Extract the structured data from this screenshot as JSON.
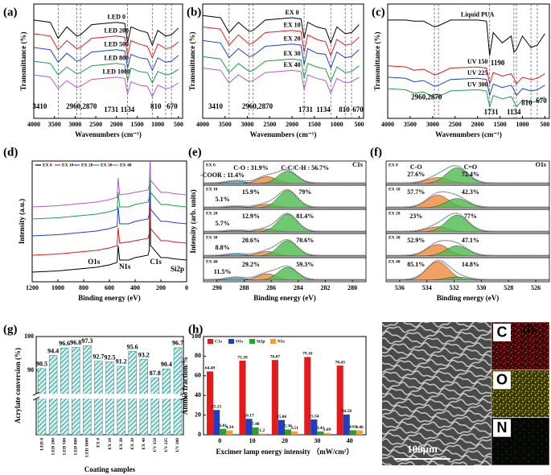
{
  "chart_data": [
    {
      "panel": "(a)",
      "type": "line",
      "xlabel": "Wavenumbers (cm⁻¹)",
      "ylabel": "Transmittance (%)",
      "xlim": [
        4000,
        400
      ],
      "xticks": [
        4000,
        3500,
        3000,
        2500,
        2000,
        1500,
        1000,
        500
      ],
      "ylim": [
        0,
        100
      ],
      "legend": "inline",
      "x": [
        4000,
        3600,
        3410,
        3200,
        2960,
        2870,
        2600,
        2000,
        1800,
        1731,
        1650,
        1450,
        1250,
        1134,
        1000,
        810,
        670,
        500
      ],
      "series": [
        {
          "name": "LED 0",
          "color": "#000000",
          "values": [
            86,
            84,
            70,
            80,
            72,
            73,
            82,
            84,
            83,
            66,
            80,
            77,
            75,
            64,
            77,
            72,
            73,
            79
          ]
        },
        {
          "name": "LED 200",
          "color": "#e41a1c",
          "values": [
            74,
            72,
            60,
            68,
            61,
            62,
            70,
            72,
            71,
            55,
            68,
            65,
            63,
            53,
            65,
            61,
            62,
            67
          ]
        },
        {
          "name": "LED 500",
          "color": "#1f3fd6",
          "values": [
            62,
            60,
            49,
            57,
            50,
            51,
            58,
            60,
            59,
            44,
            56,
            53,
            52,
            42,
            53,
            49,
            50,
            55
          ]
        },
        {
          "name": "LED 800",
          "color": "#1a9e4a",
          "values": [
            50,
            48,
            38,
            45,
            39,
            40,
            46,
            48,
            47,
            33,
            44,
            41,
            40,
            31,
            41,
            38,
            39,
            43
          ]
        },
        {
          "name": "LED 1000",
          "color": "#b05cc8",
          "values": [
            38,
            36,
            26,
            33,
            27,
            28,
            34,
            36,
            35,
            21,
            32,
            29,
            28,
            19,
            29,
            26,
            27,
            31
          ]
        }
      ],
      "vlines": [
        3410,
        2960,
        2870,
        1731,
        1134,
        810,
        670
      ],
      "annotations": [
        "3410",
        "2960,2870",
        "1731",
        "1134",
        "810",
        "670"
      ]
    },
    {
      "panel": "(b)",
      "type": "line",
      "xlabel": "Wavenumbers (cm⁻¹)",
      "ylabel": "Transmittance (%)",
      "xlim": [
        4000,
        400
      ],
      "xticks": [
        4000,
        3500,
        3000,
        2500,
        2000,
        1500,
        1000,
        500
      ],
      "ylim": [
        0,
        100
      ],
      "legend": "inline",
      "x": [
        4000,
        3600,
        3410,
        3200,
        2960,
        2870,
        2600,
        2000,
        1800,
        1731,
        1650,
        1450,
        1250,
        1134,
        1000,
        810,
        670,
        500
      ],
      "series": [
        {
          "name": "EX 0",
          "color": "#000000",
          "values": [
            90,
            88,
            75,
            84,
            76,
            77,
            86,
            88,
            87,
            70,
            84,
            80,
            78,
            66,
            80,
            74,
            75,
            82
          ]
        },
        {
          "name": "EX 10",
          "color": "#e41a1c",
          "values": [
            80,
            78,
            64,
            73,
            65,
            66,
            75,
            77,
            76,
            58,
            73,
            69,
            67,
            55,
            69,
            64,
            65,
            71
          ]
        },
        {
          "name": "EX 20",
          "color": "#1f3fd6",
          "values": [
            68,
            66,
            53,
            61,
            54,
            55,
            63,
            65,
            64,
            47,
            61,
            57,
            56,
            44,
            58,
            53,
            54,
            60
          ]
        },
        {
          "name": "EX 30",
          "color": "#1a9e4a",
          "values": [
            54,
            52,
            40,
            48,
            41,
            42,
            50,
            52,
            51,
            35,
            48,
            45,
            43,
            32,
            45,
            40,
            41,
            46
          ]
        },
        {
          "name": "EX 40",
          "color": "#b05cc8",
          "values": [
            44,
            42,
            31,
            38,
            32,
            33,
            40,
            42,
            41,
            25,
            38,
            35,
            33,
            22,
            35,
            31,
            32,
            36
          ]
        }
      ],
      "vlines": [
        3410,
        2960,
        2870,
        1731,
        1134,
        810,
        670
      ],
      "annotations": [
        "3410",
        "2960,2870",
        "1731",
        "1134",
        "810",
        "670"
      ]
    },
    {
      "panel": "(c)",
      "type": "line",
      "xlabel": "Wavenumbers (cm⁻¹)",
      "ylabel": "Transmittance (%)",
      "xlim": [
        4000,
        400
      ],
      "xticks": [
        4000,
        3500,
        3000,
        2500,
        2000,
        1500,
        1000,
        500
      ],
      "ylim": [
        0,
        100
      ],
      "legend": "inline",
      "x": [
        4000,
        3600,
        3410,
        3200,
        2960,
        2870,
        2600,
        2000,
        1800,
        1731,
        1650,
        1450,
        1250,
        1190,
        1134,
        1000,
        810,
        670,
        500
      ],
      "series": [
        {
          "name": "Liquid PUA",
          "color": "#000000",
          "values": [
            86,
            86,
            85,
            85,
            80,
            81,
            86,
            86,
            85,
            55,
            75,
            66,
            72,
            58,
            60,
            72,
            62,
            64,
            74
          ]
        },
        {
          "name": "UV 150",
          "color": "#e41a1c",
          "values": [
            46,
            45,
            42,
            43,
            38,
            39,
            44,
            45,
            44,
            30,
            40,
            37,
            39,
            35,
            30,
            36,
            34,
            35,
            39
          ]
        },
        {
          "name": "UV 225",
          "color": "#1f3fd6",
          "values": [
            36,
            35,
            32,
            33,
            28,
            29,
            34,
            35,
            34,
            20,
            30,
            27,
            29,
            25,
            20,
            26,
            24,
            25,
            29
          ]
        },
        {
          "name": "UV 300",
          "color": "#1a9e4a",
          "values": [
            26,
            25,
            22,
            23,
            18,
            19,
            24,
            25,
            24,
            10,
            20,
            17,
            19,
            15,
            10,
            16,
            14,
            15,
            19
          ]
        }
      ],
      "vlines": [
        2960,
        2870,
        1731,
        1190,
        1134,
        810,
        670
      ],
      "annotations": [
        "2960,2870",
        "1731",
        "1190",
        "1134",
        "810",
        "670"
      ]
    },
    {
      "panel": "(d)",
      "type": "line",
      "xlabel": "Binding energy (eV)",
      "ylabel": "Intensity (a.u.)",
      "xlim": [
        1200,
        0
      ],
      "xticks": [
        1200,
        1000,
        800,
        600,
        400,
        200,
        0
      ],
      "ylim": [
        0,
        100
      ],
      "legend": "top-left",
      "x": [
        1200,
        1000,
        900,
        800,
        700,
        600,
        540,
        532,
        520,
        450,
        400,
        300,
        290,
        284,
        280,
        200,
        150,
        100,
        0
      ],
      "series": [
        {
          "name": "EX 0",
          "color": "#000000",
          "values": [
            8,
            9,
            10,
            11,
            12,
            14,
            16,
            30,
            18,
            18,
            20,
            22,
            26,
            95,
            30,
            20,
            20,
            19,
            18
          ]
        },
        {
          "name": "EX 10",
          "color": "#e41a1c",
          "values": [
            22,
            23,
            24,
            25,
            26,
            28,
            30,
            45,
            32,
            33,
            34,
            36,
            40,
            98,
            44,
            34,
            34,
            33,
            32
          ]
        },
        {
          "name": "EX 20",
          "color": "#1f3fd6",
          "values": [
            38,
            39,
            40,
            41,
            42,
            44,
            46,
            62,
            48,
            48,
            50,
            52,
            56,
            99,
            60,
            50,
            50,
            49,
            48
          ]
        },
        {
          "name": "EX 30",
          "color": "#1a9e4a",
          "values": [
            52,
            53,
            54,
            55,
            56,
            58,
            60,
            74,
            62,
            62,
            64,
            66,
            70,
            100,
            74,
            64,
            64,
            63,
            62
          ]
        },
        {
          "name": "EX 40",
          "color": "#b05cc8",
          "values": [
            62,
            63,
            64,
            65,
            66,
            68,
            70,
            86,
            72,
            73,
            74,
            76,
            80,
            100,
            84,
            74,
            74,
            73,
            72
          ]
        }
      ],
      "annotations": [
        "O1s",
        "N1s",
        "C1s",
        "Si2p"
      ]
    },
    {
      "panel": "(e)",
      "type": "peakfit",
      "label": "C1s",
      "xlabel": "Binding energy (eV)",
      "ylabel": "Intensity (arb. units)",
      "xlim": [
        291,
        279
      ],
      "xticks": [
        290,
        288,
        286,
        284,
        282,
        280
      ],
      "peak_centers": [
        288.6,
        286.3,
        284.8
      ],
      "colors": [
        "#4fb3d9",
        "#f08a3c",
        "#4cbb4c"
      ],
      "panels": [
        {
          "name": "EX 0",
          "values": [
            11.4,
            31.9,
            56.7
          ],
          "value_labels": [
            "-COOR : 11.4%",
            "C-O : 31.9%",
            "C-C/C-H : 56.7%"
          ]
        },
        {
          "name": "EX 10",
          "values": [
            5.1,
            15.9,
            79
          ],
          "value_labels": [
            "5.1%",
            "15.9%",
            "79%"
          ]
        },
        {
          "name": "EX 20",
          "values": [
            5.7,
            12.9,
            81.4
          ],
          "value_labels": [
            "5.7%",
            "12.9%",
            "81.4%"
          ]
        },
        {
          "name": "EX 30",
          "values": [
            8.8,
            20.6,
            70.6
          ],
          "value_labels": [
            "8.8%",
            "20.6%",
            "70.6%"
          ]
        },
        {
          "name": "EX 40",
          "values": [
            11.5,
            29.2,
            59.3
          ],
          "value_labels": [
            "11.5%",
            "29.2%",
            "59.3%"
          ]
        }
      ]
    },
    {
      "panel": "(f)",
      "type": "peakfit",
      "label": "O1s",
      "xlabel": "Binding energy (eV)",
      "xlim": [
        537,
        525
      ],
      "xticks": [
        536,
        534,
        532,
        530,
        528,
        526
      ],
      "peak_centers": [
        533.2,
        531.8
      ],
      "colors": [
        "#f08a3c",
        "#4cbb4c"
      ],
      "peak_names": [
        "C-O",
        "C=O"
      ],
      "panels": [
        {
          "name": "EX 0",
          "values": [
            27.6,
            72.4
          ],
          "value_labels": [
            "27.6%",
            "72.4%"
          ]
        },
        {
          "name": "EX 10",
          "values": [
            57.7,
            42.3
          ],
          "value_labels": [
            "57.7%",
            "42.3%"
          ]
        },
        {
          "name": "EX 20",
          "values": [
            23,
            77
          ],
          "value_labels": [
            "23%",
            "77%"
          ]
        },
        {
          "name": "EX 30",
          "values": [
            52.9,
            47.1
          ],
          "value_labels": [
            "52.9%",
            "47.1%"
          ]
        },
        {
          "name": "EX 40",
          "values": [
            85.1,
            14.8
          ],
          "value_labels": [
            "85.1%",
            "14.8%"
          ]
        }
      ]
    },
    {
      "panel": "(g)",
      "type": "bar",
      "xlabel": "Coating samples",
      "ylabel": "Acrylate conversion (%)",
      "categories": [
        "LED 0",
        "LED 200",
        "LED 500",
        "LED 800",
        "LED 1000",
        "EX 0",
        "EX 10",
        "EX 20",
        "EX 30",
        "EX 40",
        "UV 150",
        "UV 225",
        "UV 300"
      ],
      "values": [
        90.5,
        94.4,
        96.6,
        96.8,
        97.3,
        92.7,
        92.5,
        91.2,
        95.6,
        93.2,
        87.8,
        90.4,
        96.7
      ],
      "color": "#2a9d96",
      "ylim": [
        84,
        100
      ],
      "yticks": [
        90,
        100
      ],
      "axis_break": true
    },
    {
      "panel": "(h)",
      "type": "bar",
      "xlabel": "Excimer lamp energy intensity （mW/cm²）",
      "ylabel": "Atomic fraction/%",
      "categories": [
        "0",
        "10",
        "20",
        "30",
        "40"
      ],
      "ylim": [
        0,
        100
      ],
      "yticks": [
        0,
        20,
        40,
        60,
        80,
        100
      ],
      "legend": "top-left",
      "series": [
        {
          "name": "C1s",
          "color": "#e41a1c",
          "values": [
            64.49,
            75.39,
            76.07,
            79.16,
            70.43
          ]
        },
        {
          "name": "O1s",
          "color": "#1f3fbf",
          "values": [
            25.21,
            16.17,
            15.06,
            15.54,
            20.58
          ]
        },
        {
          "name": "Si2p",
          "color": "#2ca02c",
          "values": [
            6.01,
            7.48,
            5.36,
            3.41,
            4.61
          ]
        },
        {
          "name": "N1s",
          "color": "#f0a030",
          "values": [
            4.34,
            1.2,
            3.51,
            1.89,
            4.46
          ]
        }
      ]
    }
  ],
  "sem_image": {
    "panel": "(i)",
    "scale_bar": "100μm",
    "maps": [
      "C",
      "O",
      "N"
    ]
  }
}
